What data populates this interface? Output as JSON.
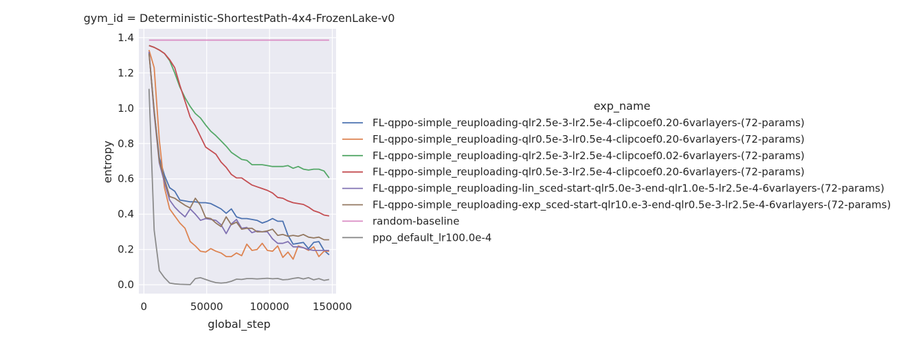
{
  "chart_data": {
    "type": "line",
    "title": "gym_id = Deterministic-ShortestPath-4x4-FrozenLake-v0",
    "xlabel": "global_step",
    "ylabel": "entropy",
    "xlim": [
      -4000,
      153000
    ],
    "ylim": [
      -0.05,
      1.45
    ],
    "xticks": [
      0,
      50000,
      100000,
      150000
    ],
    "xtick_labels": [
      "0",
      "50000",
      "100000",
      "150000"
    ],
    "yticks": [
      0.0,
      0.2,
      0.4,
      0.6,
      0.8,
      1.0,
      1.2,
      1.4
    ],
    "ytick_labels": [
      "0.0",
      "0.2",
      "0.4",
      "0.6",
      "0.8",
      "1.0",
      "1.2",
      "1.4"
    ],
    "grid": true,
    "background": "#eaeaf2",
    "legend": {
      "title": "exp_name",
      "placement": "right"
    },
    "x": [
      4096,
      8192,
      12288,
      16384,
      20480,
      24576,
      28672,
      32768,
      36864,
      40960,
      45056,
      49152,
      53248,
      57344,
      61440,
      65536,
      69632,
      73728,
      77824,
      81920,
      86016,
      90112,
      94208,
      98304,
      102400,
      106496,
      110592,
      114688,
      118784,
      122880,
      126976,
      131072,
      135168,
      139264,
      143360,
      147456
    ],
    "series": [
      {
        "name": "FL-qppo-simple_reuploading-qlr2.5e-3-lr2.5e-4-clipcoef0.20-6varlayers-(72-params)",
        "color": "#4c72b0",
        "values": [
          1.32,
          0.98,
          0.72,
          0.62,
          0.55,
          0.53,
          0.48,
          0.475,
          0.47,
          0.47,
          0.465,
          0.465,
          0.46,
          0.445,
          0.43,
          0.405,
          0.43,
          0.385,
          0.375,
          0.375,
          0.37,
          0.365,
          0.35,
          0.36,
          0.375,
          0.36,
          0.36,
          0.28,
          0.23,
          0.235,
          0.24,
          0.205,
          0.24,
          0.245,
          0.195,
          0.17
        ]
      },
      {
        "name": "FL-qppo-simple_reuploading-qlr0.5e-3-lr0.5e-4-clipcoef0.20-6varlayers-(72-params)",
        "color": "#dd8452",
        "values": [
          1.33,
          1.23,
          0.82,
          0.55,
          0.43,
          0.39,
          0.35,
          0.32,
          0.245,
          0.22,
          0.19,
          0.185,
          0.205,
          0.19,
          0.18,
          0.16,
          0.16,
          0.18,
          0.165,
          0.23,
          0.195,
          0.2,
          0.235,
          0.195,
          0.19,
          0.22,
          0.155,
          0.185,
          0.145,
          0.22,
          0.21,
          0.195,
          0.215,
          0.16,
          0.19,
          0.19
        ]
      },
      {
        "name": "FL-qppo-simple_reuploading-qlr2.5e-3-lr2.5e-4-clipcoef0.02-6varlayers-(72-params)",
        "color": "#55a868",
        "values": [
          1.355,
          1.345,
          1.33,
          1.31,
          1.27,
          1.2,
          1.12,
          1.06,
          1.01,
          0.97,
          0.945,
          0.905,
          0.87,
          0.845,
          0.815,
          0.785,
          0.75,
          0.73,
          0.71,
          0.705,
          0.68,
          0.68,
          0.68,
          0.675,
          0.67,
          0.67,
          0.67,
          0.675,
          0.66,
          0.67,
          0.655,
          0.65,
          0.655,
          0.655,
          0.645,
          0.605
        ]
      },
      {
        "name": "FL-qppo-simple_reuploading-qlr0.5e-3-lr2.5e-4-clipcoef0.20-6varlayers-(72-params)",
        "color": "#c44e52",
        "values": [
          1.355,
          1.345,
          1.33,
          1.31,
          1.275,
          1.23,
          1.13,
          1.04,
          0.95,
          0.9,
          0.84,
          0.78,
          0.76,
          0.74,
          0.695,
          0.665,
          0.625,
          0.605,
          0.605,
          0.585,
          0.565,
          0.555,
          0.545,
          0.535,
          0.52,
          0.495,
          0.49,
          0.475,
          0.465,
          0.46,
          0.455,
          0.44,
          0.42,
          0.41,
          0.395,
          0.39
        ]
      },
      {
        "name": "FL-qppo-simple_reuploading-lin_sced-start-qlr5.0e-3-end-qlr1.0e-5-lr2.5e-4-6varlayers-(72-params)",
        "color": "#8172b3",
        "values": [
          1.32,
          0.97,
          0.69,
          0.58,
          0.48,
          0.44,
          0.41,
          0.385,
          0.43,
          0.4,
          0.365,
          0.375,
          0.37,
          0.365,
          0.34,
          0.29,
          0.345,
          0.37,
          0.32,
          0.325,
          0.295,
          0.305,
          0.3,
          0.3,
          0.26,
          0.235,
          0.235,
          0.245,
          0.215,
          0.215,
          0.21,
          0.2,
          0.195,
          0.195,
          0.195,
          0.195
        ]
      },
      {
        "name": "FL-qppo-simple_reuploading-exp_sced-start-qlr10.e-3-end-qlr0.5e-3-lr2.5e-4-6varlayers-(72-params)",
        "color": "#937860",
        "values": [
          1.31,
          0.99,
          0.7,
          0.6,
          0.5,
          0.49,
          0.47,
          0.45,
          0.435,
          0.49,
          0.45,
          0.38,
          0.375,
          0.35,
          0.33,
          0.385,
          0.34,
          0.355,
          0.315,
          0.32,
          0.32,
          0.3,
          0.3,
          0.305,
          0.315,
          0.28,
          0.285,
          0.275,
          0.28,
          0.275,
          0.285,
          0.27,
          0.265,
          0.27,
          0.255,
          0.255
        ]
      },
      {
        "name": "random-baseline",
        "color": "#da8bc3",
        "values": [
          1.386,
          1.386,
          1.386,
          1.386,
          1.386,
          1.386,
          1.386,
          1.386,
          1.386,
          1.386,
          1.386,
          1.386,
          1.386,
          1.386,
          1.386,
          1.386,
          1.386,
          1.386,
          1.386,
          1.386,
          1.386,
          1.386,
          1.386,
          1.386,
          1.386,
          1.386,
          1.386,
          1.386,
          1.386,
          1.386,
          1.386,
          1.386,
          1.386,
          1.386,
          1.386,
          1.386
        ]
      },
      {
        "name": "ppo_default_lr100.0e-4",
        "color": "#8c8c8c",
        "values": [
          1.11,
          0.31,
          0.08,
          0.04,
          0.01,
          0.005,
          0.003,
          0.002,
          0.001,
          0.035,
          0.04,
          0.03,
          0.02,
          0.012,
          0.01,
          0.012,
          0.02,
          0.032,
          0.03,
          0.035,
          0.035,
          0.033,
          0.035,
          0.037,
          0.034,
          0.036,
          0.028,
          0.03,
          0.036,
          0.04,
          0.033,
          0.04,
          0.028,
          0.035,
          0.025,
          0.03
        ]
      }
    ]
  }
}
